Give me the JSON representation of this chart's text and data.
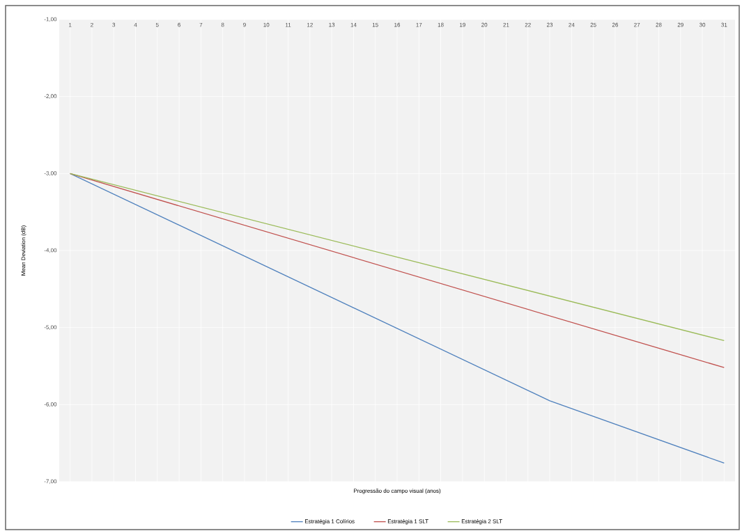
{
  "chart_data": {
    "type": "line",
    "xlabel": "Progressão do campo visual (anos)",
    "ylabel": "Mean Deviation (dB)",
    "xlim": [
      0.5,
      31.5
    ],
    "xticks": [
      1,
      2,
      3,
      4,
      5,
      6,
      7,
      8,
      9,
      10,
      11,
      12,
      13,
      14,
      15,
      16,
      17,
      18,
      19,
      20,
      21,
      22,
      23,
      24,
      25,
      26,
      27,
      28,
      29,
      30,
      31
    ],
    "ylim": [
      -7,
      -1
    ],
    "yticks": [
      {
        "value": -1,
        "label": "-1,00"
      },
      {
        "value": -2,
        "label": "-2,00"
      },
      {
        "value": -3,
        "label": "-3,00"
      },
      {
        "value": -4,
        "label": "-4,00"
      },
      {
        "value": -5,
        "label": "-5,00"
      },
      {
        "value": -6,
        "label": "-6,00"
      },
      {
        "value": -7,
        "label": "-7,00"
      }
    ],
    "grid": true,
    "legend": "bottom",
    "series": [
      {
        "name": "Estratégia 1 Colírios",
        "color": "#4f81bd",
        "x": [
          1,
          23,
          31
        ],
        "values": [
          -3.0,
          -5.95,
          -6.76
        ]
      },
      {
        "name": "Estratégia 1 SLT",
        "color": "#c0504d",
        "x": [
          1,
          31
        ],
        "values": [
          -3.0,
          -5.52
        ]
      },
      {
        "name": "Estratégia 2 SLT",
        "color": "#9bbb59",
        "x": [
          1,
          31
        ],
        "values": [
          -3.0,
          -5.17
        ]
      }
    ]
  }
}
